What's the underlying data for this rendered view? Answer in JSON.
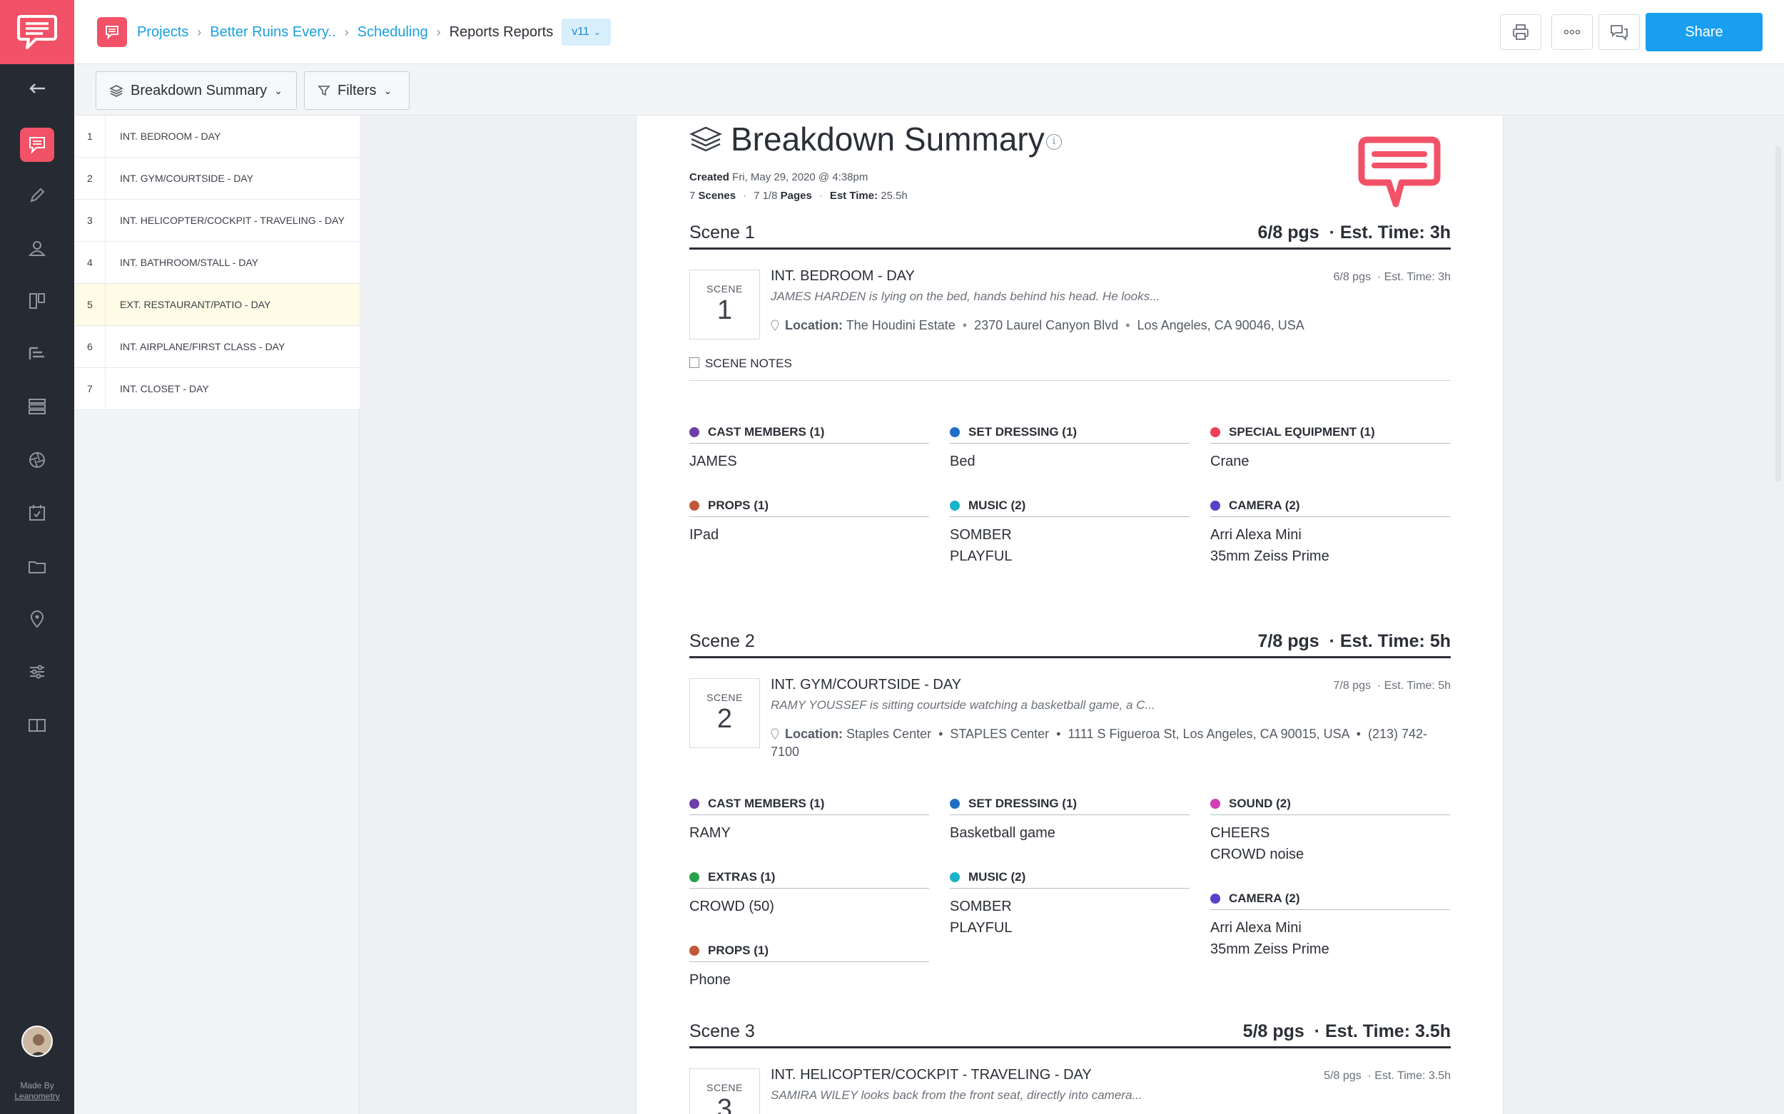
{
  "breadcrumb": {
    "items": [
      "Projects",
      "Better Ruins Every..",
      "Scheduling"
    ],
    "current": "Reports Reports",
    "version": "v11"
  },
  "topbar": {
    "share_label": "Share"
  },
  "toolbar": {
    "view_label": "Breakdown Summary",
    "filters_label": "Filters"
  },
  "rail": {
    "made_by": "Made By",
    "made_by_brand": "Leanometry"
  },
  "scene_list": [
    {
      "num": "1",
      "name": "INT. BEDROOM - DAY"
    },
    {
      "num": "2",
      "name": "INT. GYM/COURTSIDE - DAY"
    },
    {
      "num": "3",
      "name": "INT. HELICOPTER/COCKPIT - TRAVELING - DAY"
    },
    {
      "num": "4",
      "name": "INT. BATHROOM/STALL - DAY"
    },
    {
      "num": "5",
      "name": "EXT. RESTAURANT/PATIO - DAY"
    },
    {
      "num": "6",
      "name": "INT. AIRPLANE/FIRST CLASS - DAY"
    },
    {
      "num": "7",
      "name": "INT. CLOSET - DAY"
    }
  ],
  "report": {
    "title": "Breakdown Summary",
    "created_label": "Created",
    "created_value": "Fri, May 29, 2020 @ 4:38pm",
    "scenes_count": "7",
    "scenes_label": "Scenes",
    "pages_count": "7 1/8",
    "pages_label": "Pages",
    "est_label": "Est Time:",
    "est_value": "25.5h"
  },
  "colors": {
    "brand": "#f25267",
    "share": "#1a9ff0",
    "cast": "#6f3ea5",
    "set_dressing": "#1f6fc6",
    "special_equipment": "#ef4058",
    "props": "#c0573b",
    "music": "#1bb3c8",
    "camera": "#5a40c8",
    "sound": "#d43fb5",
    "extras": "#2aa04a"
  },
  "scenes": [
    {
      "header": "Scene 1",
      "pages": "6/8 pgs",
      "est": "· Est. Time: 3h",
      "box_label": "SCENE",
      "box_num": "1",
      "heading": "INT. BEDROOM - DAY",
      "pages_small": "6/8 pgs",
      "est_small": "· Est. Time: 3h",
      "synopsis": "JAMES HARDEN is lying on the bed, hands behind his head. He looks...",
      "location_label": "Location:",
      "location_parts": [
        "The Houdini Estate",
        "2370 Laurel Canyon Blvd",
        "Los Angeles, CA 90046, USA"
      ],
      "notes_label": "SCENE NOTES",
      "categories": [
        {
          "label": "CAST MEMBERS (1)",
          "items": [
            "JAMES"
          ]
        },
        {
          "label": "SET DRESSING (1)",
          "items": [
            "Bed"
          ]
        },
        {
          "label": "SPECIAL EQUIPMENT (1)",
          "items": [
            "Crane"
          ]
        },
        {
          "label": "PROPS (1)",
          "items": [
            "IPad"
          ]
        },
        {
          "label": "MUSIC (2)",
          "items": [
            "SOMBER",
            "PLAYFUL"
          ]
        },
        {
          "label": "CAMERA (2)",
          "items": [
            "Arri Alexa Mini",
            "35mm Zeiss Prime"
          ]
        }
      ]
    },
    {
      "header": "Scene 2",
      "pages": "7/8 pgs",
      "est": "· Est. Time: 5h",
      "box_label": "SCENE",
      "box_num": "2",
      "heading": "INT. GYM/COURTSIDE - DAY",
      "pages_small": "7/8 pgs",
      "est_small": "· Est. Time: 5h",
      "synopsis": "RAMY YOUSSEF is sitting courtside watching a basketball game, a C...",
      "location_label": "Location:",
      "location_text": "Staples Center  •  STAPLES Center  •  1111 S Figueroa St, Los Angeles, CA 90015, USA  •  (213) 742-7100",
      "categories": [
        {
          "label": "CAST MEMBERS (1)",
          "items": [
            "RAMY"
          ]
        },
        {
          "label": "SET DRESSING (1)",
          "items": [
            "Basketball game"
          ]
        },
        {
          "label": "SOUND (2)",
          "items": [
            "CHEERS",
            "CROWD noise"
          ]
        },
        {
          "label": "EXTRAS (1)",
          "items": [
            "CROWD (50)"
          ]
        },
        {
          "label": "MUSIC (2)",
          "items": [
            "SOMBER",
            "PLAYFUL"
          ]
        },
        {
          "label": "CAMERA (2)",
          "items": [
            "Arri Alexa Mini",
            "35mm Zeiss Prime"
          ]
        },
        {
          "label": "PROPS (1)",
          "items": [
            "Phone"
          ]
        }
      ]
    },
    {
      "header": "Scene 3",
      "pages": "5/8 pgs",
      "est": "· Est. Time: 3.5h",
      "box_label": "SCENE",
      "box_num": "3",
      "heading": "INT. HELICOPTER/COCKPIT - TRAVELING - DAY",
      "pages_small": "5/8 pgs",
      "est_small": "· Est. Time: 3.5h",
      "synopsis": "SAMIRA WILEY looks back from the front seat, directly into camera..."
    }
  ]
}
